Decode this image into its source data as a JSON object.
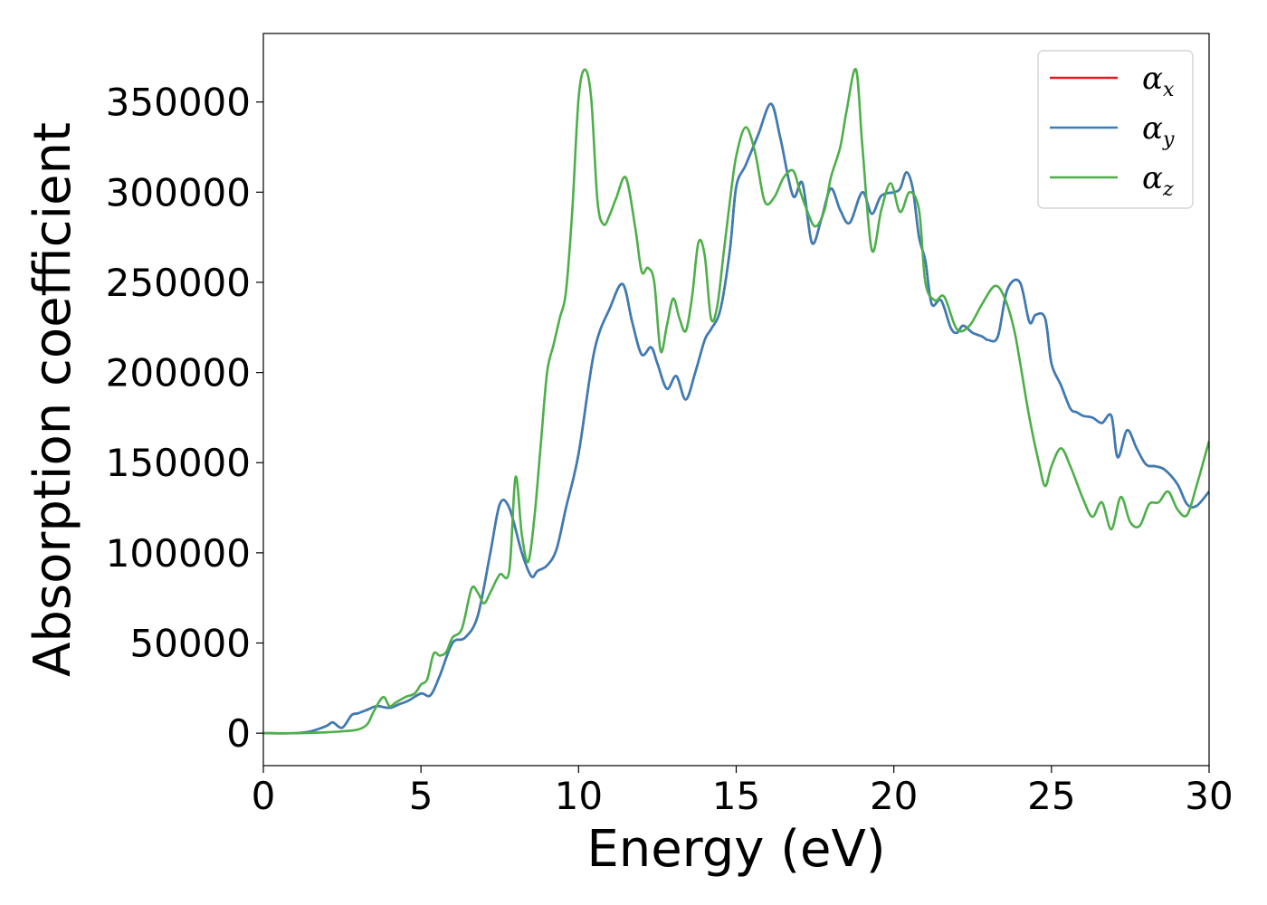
{
  "chart_data": {
    "type": "line",
    "xlabel": "Energy (eV)",
    "ylabel": "Absorption coefficient",
    "xlim": [
      0,
      30
    ],
    "ylim": [
      -18000,
      388000
    ],
    "x_ticks": [
      0,
      5,
      10,
      15,
      20,
      25,
      30
    ],
    "y_ticks": [
      0,
      50000,
      100000,
      150000,
      200000,
      250000,
      300000,
      350000
    ],
    "grid": false,
    "legend_position": "top-right",
    "series": [
      {
        "name": "αx",
        "legend_base": "α",
        "legend_sub": "x",
        "color": "#e41a1c",
        "x": [
          0,
          1,
          1.5,
          2,
          2.2,
          2.5,
          2.8,
          3,
          3.3,
          3.6,
          4,
          4.3,
          4.6,
          5,
          5.3,
          5.6,
          6,
          6.4,
          6.8,
          7.2,
          7.5,
          7.8,
          8.2,
          8.5,
          8.7,
          9,
          9.3,
          9.6,
          10,
          10.5,
          11,
          11.4,
          11.7,
          12,
          12.3,
          12.5,
          12.8,
          13.1,
          13.4,
          13.7,
          14,
          14.2,
          14.5,
          14.8,
          15,
          15.3,
          15.7,
          16.1,
          16.4,
          16.8,
          17.1,
          17.4,
          17.7,
          18,
          18.3,
          18.6,
          19,
          19.3,
          19.6,
          20,
          20.2,
          20.4,
          20.6,
          20.8,
          21,
          21.2,
          21.5,
          21.8,
          22,
          22.2,
          22.5,
          22.8,
          23,
          23.3,
          23.6,
          24,
          24.3,
          24.5,
          24.8,
          25,
          25.3,
          25.6,
          25.8,
          26,
          26.3,
          26.6,
          26.9,
          27.1,
          27.4,
          27.7,
          28,
          28.3,
          28.6,
          29,
          29.3,
          29.6,
          30
        ],
        "y": [
          0,
          0,
          1000,
          4000,
          6000,
          3000,
          10000,
          11000,
          13000,
          15000,
          14000,
          16000,
          18000,
          22000,
          21000,
          32000,
          50000,
          53000,
          65000,
          100000,
          127000,
          125000,
          100000,
          87000,
          90000,
          93000,
          102000,
          125000,
          155000,
          212000,
          236000,
          249000,
          228000,
          210000,
          214000,
          205000,
          191000,
          198000,
          185000,
          200000,
          218000,
          224000,
          235000,
          268000,
          303000,
          315000,
          332000,
          349000,
          330000,
          298000,
          305000,
          272000,
          285000,
          302000,
          290000,
          283000,
          300000,
          288000,
          298000,
          300000,
          302000,
          311000,
          302000,
          275000,
          262000,
          238000,
          240000,
          225000,
          222000,
          226000,
          222000,
          220000,
          218000,
          220000,
          246000,
          250000,
          228000,
          232000,
          230000,
          205000,
          193000,
          180000,
          178000,
          176000,
          175000,
          172000,
          176000,
          153000,
          168000,
          158000,
          149000,
          148000,
          146000,
          138000,
          127000,
          126000,
          134000
        ]
      },
      {
        "name": "αy",
        "legend_base": "α",
        "legend_sub": "y",
        "color": "#377eb8",
        "x": [
          0,
          1,
          1.5,
          2,
          2.2,
          2.5,
          2.8,
          3,
          3.3,
          3.6,
          4,
          4.3,
          4.6,
          5,
          5.3,
          5.6,
          6,
          6.4,
          6.8,
          7.2,
          7.5,
          7.8,
          8.2,
          8.5,
          8.7,
          9,
          9.3,
          9.6,
          10,
          10.5,
          11,
          11.4,
          11.7,
          12,
          12.3,
          12.5,
          12.8,
          13.1,
          13.4,
          13.7,
          14,
          14.2,
          14.5,
          14.8,
          15,
          15.3,
          15.7,
          16.1,
          16.4,
          16.8,
          17.1,
          17.4,
          17.7,
          18,
          18.3,
          18.6,
          19,
          19.3,
          19.6,
          20,
          20.2,
          20.4,
          20.6,
          20.8,
          21,
          21.2,
          21.5,
          21.8,
          22,
          22.2,
          22.5,
          22.8,
          23,
          23.3,
          23.6,
          24,
          24.3,
          24.5,
          24.8,
          25,
          25.3,
          25.6,
          25.8,
          26,
          26.3,
          26.6,
          26.9,
          27.1,
          27.4,
          27.7,
          28,
          28.3,
          28.6,
          29,
          29.3,
          29.6,
          30
        ],
        "y": [
          0,
          0,
          1000,
          4000,
          6000,
          3000,
          10000,
          11000,
          13000,
          15000,
          14000,
          16000,
          18000,
          22000,
          21000,
          32000,
          50000,
          53000,
          65000,
          100000,
          127000,
          125000,
          100000,
          87000,
          90000,
          93000,
          102000,
          125000,
          155000,
          212000,
          236000,
          249000,
          228000,
          210000,
          214000,
          205000,
          191000,
          198000,
          185000,
          200000,
          218000,
          224000,
          235000,
          268000,
          303000,
          315000,
          332000,
          349000,
          330000,
          298000,
          305000,
          272000,
          285000,
          302000,
          290000,
          283000,
          300000,
          288000,
          298000,
          300000,
          302000,
          311000,
          302000,
          275000,
          262000,
          238000,
          240000,
          225000,
          222000,
          226000,
          222000,
          220000,
          218000,
          220000,
          246000,
          250000,
          228000,
          232000,
          230000,
          205000,
          193000,
          180000,
          178000,
          176000,
          175000,
          172000,
          176000,
          153000,
          168000,
          158000,
          149000,
          148000,
          146000,
          138000,
          127000,
          126000,
          134000
        ]
      },
      {
        "name": "αz",
        "legend_base": "α",
        "legend_sub": "z",
        "color": "#4daf4a",
        "x": [
          0,
          1,
          2,
          2.5,
          3,
          3.3,
          3.5,
          3.8,
          4,
          4.2,
          4.5,
          4.8,
          5,
          5.2,
          5.4,
          5.6,
          5.8,
          6,
          6.3,
          6.6,
          6.8,
          7,
          7.2,
          7.5,
          7.8,
          8,
          8.2,
          8.4,
          8.6,
          8.8,
          9,
          9.2,
          9.4,
          9.6,
          9.8,
          10,
          10.2,
          10.4,
          10.6,
          10.8,
          11,
          11.2,
          11.5,
          11.8,
          12,
          12.2,
          12.4,
          12.6,
          12.8,
          13,
          13.2,
          13.4,
          13.6,
          13.8,
          14,
          14.2,
          14.4,
          14.6,
          14.8,
          15,
          15.3,
          15.6,
          15.9,
          16.2,
          16.5,
          16.8,
          17,
          17.2,
          17.5,
          17.8,
          18,
          18.3,
          18.5,
          18.8,
          19,
          19.3,
          19.6,
          19.9,
          20.2,
          20.5,
          20.8,
          21,
          21.3,
          21.6,
          22,
          22.4,
          22.8,
          23.2,
          23.5,
          23.8,
          24,
          24.3,
          24.6,
          24.8,
          25,
          25.3,
          25.6,
          26,
          26.3,
          26.6,
          26.9,
          27.2,
          27.5,
          27.8,
          28.1,
          28.4,
          28.7,
          29,
          29.3,
          29.6,
          30
        ],
        "y": [
          0,
          0,
          500,
          1000,
          2000,
          5000,
          12000,
          20000,
          15000,
          17000,
          20000,
          22000,
          27000,
          30000,
          44000,
          43000,
          45000,
          53000,
          58000,
          80000,
          78000,
          72000,
          78000,
          88000,
          90000,
          142000,
          110000,
          95000,
          120000,
          160000,
          200000,
          215000,
          230000,
          245000,
          290000,
          352000,
          368000,
          352000,
          295000,
          282000,
          288000,
          297000,
          308000,
          280000,
          256000,
          258000,
          250000,
          212000,
          226000,
          241000,
          230000,
          223000,
          242000,
          272000,
          265000,
          230000,
          237000,
          266000,
          295000,
          320000,
          336000,
          322000,
          295000,
          297000,
          308000,
          312000,
          302000,
          292000,
          281000,
          290000,
          308000,
          325000,
          345000,
          368000,
          326000,
          268000,
          290000,
          305000,
          289000,
          300000,
          290000,
          250000,
          240000,
          242000,
          224000,
          226000,
          238000,
          248000,
          242000,
          225000,
          206000,
          175000,
          150000,
          137000,
          148000,
          158000,
          148000,
          130000,
          120000,
          128000,
          113000,
          131000,
          117000,
          115000,
          127000,
          128000,
          134000,
          124000,
          121000,
          137000,
          162000
        ]
      }
    ]
  }
}
